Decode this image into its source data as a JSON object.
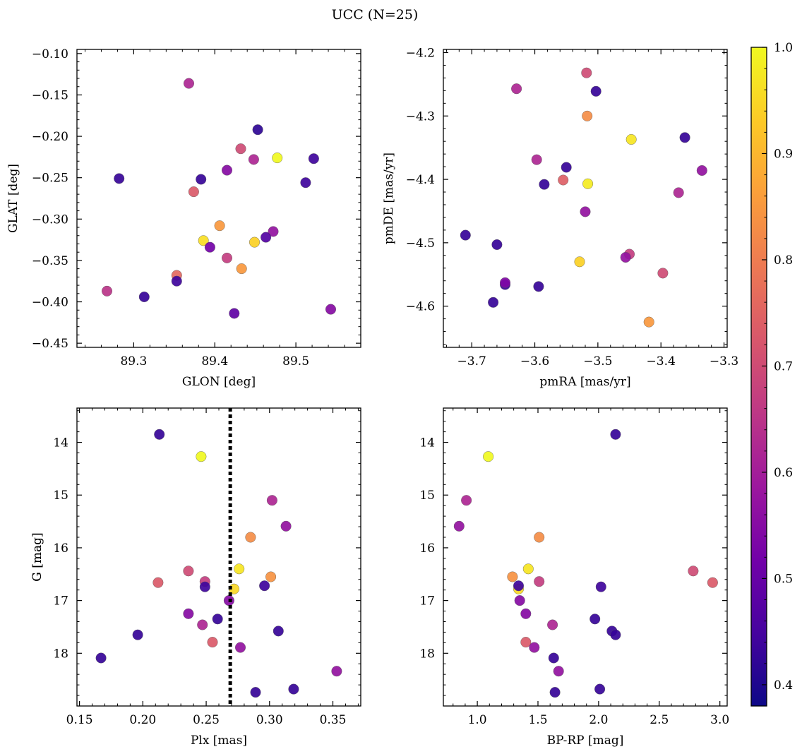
{
  "figure": {
    "title": "UCC (N=25)"
  },
  "colormap": {
    "name": "plasma",
    "stops": [
      "#0d0887",
      "#46039f",
      "#7201a8",
      "#9c179e",
      "#bd3786",
      "#d8576b",
      "#ed7953",
      "#fb9f3a",
      "#fdca26",
      "#f0f921"
    ],
    "range": [
      0.38,
      1.0
    ],
    "ticks": [
      0.4,
      0.5,
      0.6,
      0.7,
      0.8,
      0.9,
      1.0
    ],
    "tick_labels": [
      "0.4",
      "0.5",
      "0.6",
      "0.7",
      "0.8",
      "0.9",
      "1.0"
    ]
  },
  "chart_data": [
    {
      "type": "scatter",
      "id": "glon-glat",
      "title": "",
      "xlabel": "GLON [deg]",
      "ylabel": "GLAT [deg]",
      "xlim": [
        89.23,
        89.58
      ],
      "ylim": [
        -0.455,
        -0.095
      ],
      "invert_y": false,
      "xticks": [
        89.3,
        89.4,
        89.5
      ],
      "xtick_labels": [
        "89.3",
        "89.4",
        "89.5"
      ],
      "yticks": [
        -0.45,
        -0.4,
        -0.35,
        -0.3,
        -0.25,
        -0.2,
        -0.15,
        -0.1
      ],
      "ytick_labels": [
        "−0.45",
        "−0.40",
        "−0.35",
        "−0.30",
        "−0.25",
        "−0.20",
        "−0.15",
        "−0.10"
      ],
      "points": [
        {
          "x": 89.368,
          "y": -0.136,
          "c": 0.62
        },
        {
          "x": 89.453,
          "y": -0.192,
          "c": 0.42
        },
        {
          "x": 89.432,
          "y": -0.215,
          "c": 0.7
        },
        {
          "x": 89.477,
          "y": -0.226,
          "c": 1.0
        },
        {
          "x": 89.448,
          "y": -0.228,
          "c": 0.62
        },
        {
          "x": 89.522,
          "y": -0.227,
          "c": 0.44
        },
        {
          "x": 89.415,
          "y": -0.241,
          "c": 0.55
        },
        {
          "x": 89.282,
          "y": -0.251,
          "c": 0.43
        },
        {
          "x": 89.383,
          "y": -0.252,
          "c": 0.43
        },
        {
          "x": 89.512,
          "y": -0.256,
          "c": 0.44
        },
        {
          "x": 89.374,
          "y": -0.267,
          "c": 0.73
        },
        {
          "x": 89.406,
          "y": -0.308,
          "c": 0.85
        },
        {
          "x": 89.472,
          "y": -0.315,
          "c": 0.57
        },
        {
          "x": 89.463,
          "y": -0.322,
          "c": 0.47
        },
        {
          "x": 89.386,
          "y": -0.326,
          "c": 0.96
        },
        {
          "x": 89.449,
          "y": -0.328,
          "c": 0.94
        },
        {
          "x": 89.394,
          "y": -0.334,
          "c": 0.52
        },
        {
          "x": 89.415,
          "y": -0.347,
          "c": 0.67
        },
        {
          "x": 89.433,
          "y": -0.36,
          "c": 0.85
        },
        {
          "x": 89.353,
          "y": -0.368,
          "c": 0.76
        },
        {
          "x": 89.353,
          "y": -0.375,
          "c": 0.44
        },
        {
          "x": 89.267,
          "y": -0.387,
          "c": 0.65
        },
        {
          "x": 89.313,
          "y": -0.394,
          "c": 0.43
        },
        {
          "x": 89.424,
          "y": -0.414,
          "c": 0.49
        },
        {
          "x": 89.543,
          "y": -0.409,
          "c": 0.55
        }
      ]
    },
    {
      "type": "scatter",
      "id": "pmra-pmde",
      "title": "",
      "xlabel": "pmRA [mas/yr]",
      "ylabel": "pmDE [mas/yr]",
      "xlim": [
        -3.745,
        -3.295
      ],
      "ylim": [
        -4.665,
        -4.195
      ],
      "invert_y": false,
      "xticks": [
        -3.7,
        -3.6,
        -3.5,
        -3.4,
        -3.3
      ],
      "xtick_labels": [
        "−3.7",
        "−3.6",
        "−3.5",
        "−3.4",
        "−3.3"
      ],
      "yticks": [
        -4.6,
        -4.5,
        -4.4,
        -4.3,
        -4.2
      ],
      "ytick_labels": [
        "−4.6",
        "−4.5",
        "−4.4",
        "−4.3",
        "−4.2"
      ],
      "points": [
        {
          "x": -3.518,
          "y": -4.232,
          "c": 0.7
        },
        {
          "x": -3.629,
          "y": -4.257,
          "c": 0.62
        },
        {
          "x": -3.503,
          "y": -4.261,
          "c": 0.43
        },
        {
          "x": -3.517,
          "y": -4.3,
          "c": 0.83
        },
        {
          "x": -3.447,
          "y": -4.337,
          "c": 0.97
        },
        {
          "x": -3.362,
          "y": -4.334,
          "c": 0.43
        },
        {
          "x": -3.597,
          "y": -4.369,
          "c": 0.62
        },
        {
          "x": -3.55,
          "y": -4.381,
          "c": 0.43
        },
        {
          "x": -3.335,
          "y": -4.386,
          "c": 0.57
        },
        {
          "x": -3.585,
          "y": -4.408,
          "c": 0.43
        },
        {
          "x": -3.555,
          "y": -4.401,
          "c": 0.74
        },
        {
          "x": -3.516,
          "y": -4.407,
          "c": 0.98
        },
        {
          "x": -3.372,
          "y": -4.421,
          "c": 0.62
        },
        {
          "x": -3.52,
          "y": -4.451,
          "c": 0.57
        },
        {
          "x": -3.71,
          "y": -4.488,
          "c": 0.43
        },
        {
          "x": -3.66,
          "y": -4.503,
          "c": 0.43
        },
        {
          "x": -3.45,
          "y": -4.518,
          "c": 0.67
        },
        {
          "x": -3.456,
          "y": -4.523,
          "c": 0.57
        },
        {
          "x": -3.529,
          "y": -4.53,
          "c": 0.94
        },
        {
          "x": -3.397,
          "y": -4.548,
          "c": 0.7
        },
        {
          "x": -3.647,
          "y": -4.566,
          "c": 0.43
        },
        {
          "x": -3.647,
          "y": -4.563,
          "c": 0.54
        },
        {
          "x": -3.594,
          "y": -4.569,
          "c": 0.43
        },
        {
          "x": -3.666,
          "y": -4.594,
          "c": 0.43
        },
        {
          "x": -3.419,
          "y": -4.625,
          "c": 0.85
        }
      ]
    },
    {
      "type": "scatter",
      "id": "plx-g",
      "title": "",
      "xlabel": "Plx [mas]",
      "ylabel": "G [mag]",
      "xlim": [
        0.148,
        0.372
      ],
      "ylim": [
        13.35,
        19.0
      ],
      "invert_y": true,
      "xticks": [
        0.15,
        0.2,
        0.25,
        0.3,
        0.35
      ],
      "xtick_labels": [
        "0.15",
        "0.20",
        "0.25",
        "0.30",
        "0.35"
      ],
      "yticks": [
        14,
        15,
        16,
        17,
        18
      ],
      "ytick_labels": [
        "14",
        "15",
        "16",
        "17",
        "18"
      ],
      "vline": {
        "x": 0.269,
        "style": "dotted",
        "color": "#000000"
      },
      "points": [
        {
          "x": 0.213,
          "y": 13.85,
          "c": 0.43
        },
        {
          "x": 0.246,
          "y": 14.27,
          "c": 1.0
        },
        {
          "x": 0.302,
          "y": 15.1,
          "c": 0.62
        },
        {
          "x": 0.313,
          "y": 15.59,
          "c": 0.57
        },
        {
          "x": 0.285,
          "y": 15.8,
          "c": 0.83
        },
        {
          "x": 0.276,
          "y": 16.4,
          "c": 0.97
        },
        {
          "x": 0.236,
          "y": 16.44,
          "c": 0.7
        },
        {
          "x": 0.301,
          "y": 16.55,
          "c": 0.84
        },
        {
          "x": 0.212,
          "y": 16.66,
          "c": 0.73
        },
        {
          "x": 0.249,
          "y": 16.64,
          "c": 0.67
        },
        {
          "x": 0.249,
          "y": 16.74,
          "c": 0.44
        },
        {
          "x": 0.272,
          "y": 16.78,
          "c": 0.95
        },
        {
          "x": 0.296,
          "y": 16.72,
          "c": 0.44
        },
        {
          "x": 0.268,
          "y": 17.0,
          "c": 0.55
        },
        {
          "x": 0.236,
          "y": 17.25,
          "c": 0.55
        },
        {
          "x": 0.259,
          "y": 17.35,
          "c": 0.43
        },
        {
          "x": 0.247,
          "y": 17.46,
          "c": 0.62
        },
        {
          "x": 0.307,
          "y": 17.58,
          "c": 0.43
        },
        {
          "x": 0.196,
          "y": 17.65,
          "c": 0.43
        },
        {
          "x": 0.255,
          "y": 17.79,
          "c": 0.73
        },
        {
          "x": 0.277,
          "y": 17.89,
          "c": 0.57
        },
        {
          "x": 0.167,
          "y": 18.09,
          "c": 0.43
        },
        {
          "x": 0.353,
          "y": 18.34,
          "c": 0.57
        },
        {
          "x": 0.319,
          "y": 18.68,
          "c": 0.43
        },
        {
          "x": 0.289,
          "y": 18.74,
          "c": 0.43
        }
      ]
    },
    {
      "type": "scatter",
      "id": "bprp-g",
      "title": "",
      "xlabel": "BP-RP [mag]",
      "ylabel": "G [mag]",
      "xlim": [
        0.72,
        3.06
      ],
      "ylim": [
        13.35,
        19.0
      ],
      "invert_y": true,
      "xticks": [
        1.0,
        1.5,
        2.0,
        2.5,
        3.0
      ],
      "xtick_labels": [
        "1.0",
        "1.5",
        "2.0",
        "2.5",
        "3.0"
      ],
      "yticks": [
        14,
        15,
        16,
        17,
        18
      ],
      "ytick_labels": [
        "14",
        "15",
        "16",
        "17",
        "18"
      ],
      "points": [
        {
          "x": 2.14,
          "y": 13.85,
          "c": 0.43
        },
        {
          "x": 1.09,
          "y": 14.27,
          "c": 1.0
        },
        {
          "x": 0.91,
          "y": 15.1,
          "c": 0.62
        },
        {
          "x": 0.85,
          "y": 15.59,
          "c": 0.57
        },
        {
          "x": 1.51,
          "y": 15.8,
          "c": 0.83
        },
        {
          "x": 1.42,
          "y": 16.4,
          "c": 0.97
        },
        {
          "x": 2.78,
          "y": 16.44,
          "c": 0.7
        },
        {
          "x": 1.29,
          "y": 16.55,
          "c": 0.84
        },
        {
          "x": 2.94,
          "y": 16.66,
          "c": 0.73
        },
        {
          "x": 1.51,
          "y": 16.64,
          "c": 0.67
        },
        {
          "x": 2.02,
          "y": 16.74,
          "c": 0.44
        },
        {
          "x": 1.34,
          "y": 16.78,
          "c": 0.95
        },
        {
          "x": 1.34,
          "y": 16.72,
          "c": 0.44
        },
        {
          "x": 1.35,
          "y": 17.0,
          "c": 0.55
        },
        {
          "x": 1.4,
          "y": 17.25,
          "c": 0.55
        },
        {
          "x": 1.97,
          "y": 17.35,
          "c": 0.43
        },
        {
          "x": 1.62,
          "y": 17.46,
          "c": 0.62
        },
        {
          "x": 2.11,
          "y": 17.58,
          "c": 0.43
        },
        {
          "x": 2.14,
          "y": 17.65,
          "c": 0.43
        },
        {
          "x": 1.4,
          "y": 17.79,
          "c": 0.73
        },
        {
          "x": 1.47,
          "y": 17.89,
          "c": 0.57
        },
        {
          "x": 1.63,
          "y": 18.09,
          "c": 0.43
        },
        {
          "x": 1.67,
          "y": 18.34,
          "c": 0.57
        },
        {
          "x": 2.01,
          "y": 18.68,
          "c": 0.43
        },
        {
          "x": 1.64,
          "y": 18.74,
          "c": 0.43
        }
      ]
    }
  ]
}
